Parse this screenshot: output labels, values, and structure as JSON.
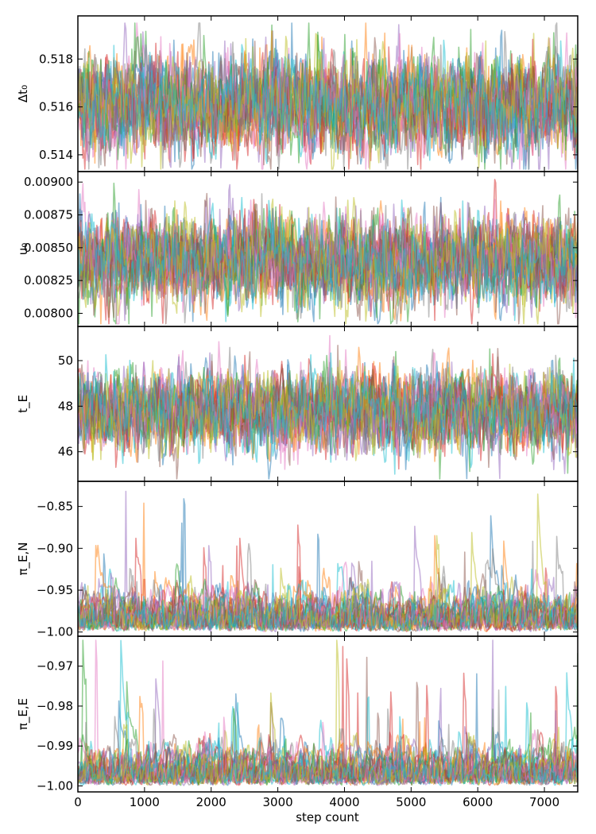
{
  "chart_data": {
    "type": "line",
    "description_style": "MCMC walker trace plot, stacked panels sharing the x axis",
    "xlabel": "step count",
    "xlim": [
      0,
      7500
    ],
    "xticks": [
      0,
      1000,
      2000,
      3000,
      4000,
      5000,
      6000,
      7000
    ],
    "xtick_labels": [
      "0",
      "1000",
      "2000",
      "3000",
      "4000",
      "5000",
      "6000",
      "7000"
    ],
    "series_colors": [
      "#1f77b4",
      "#ff7f0e",
      "#2ca02c",
      "#d62728",
      "#9467bd",
      "#8c564b",
      "#e377c2",
      "#7f7f7f",
      "#bcbd22",
      "#17becf"
    ],
    "series_opacity": 0.5,
    "n_walkers": 20,
    "n_steps": 7500,
    "panels": [
      {
        "ylabel": "Δt₀",
        "ylim": [
          0.5133,
          0.5198
        ],
        "yticks": [
          0.514,
          0.516,
          0.518
        ],
        "ytick_labels": [
          "0.514",
          "0.516",
          "0.518"
        ],
        "center": 0.5161,
        "spread": 0.0011,
        "min_observed": 0.5134,
        "max_observed": 0.5195
      },
      {
        "ylabel": "u₀",
        "ylim": [
          0.0079,
          0.00908
        ],
        "yticks": [
          0.008,
          0.00825,
          0.0085,
          0.00875,
          0.009
        ],
        "ytick_labels": [
          "0.00800",
          "0.00825",
          "0.00850",
          "0.00875",
          "0.00900"
        ],
        "center": 0.0084,
        "spread": 0.00018,
        "min_observed": 0.00792,
        "max_observed": 0.00902
      },
      {
        "ylabel": "t_E",
        "ylim": [
          44.7,
          51.5
        ],
        "yticks": [
          46,
          48,
          50
        ],
        "ytick_labels": [
          "46",
          "48",
          "50"
        ],
        "center": 47.8,
        "spread": 0.95,
        "min_observed": 44.8,
        "max_observed": 51.1
      },
      {
        "ylabel": "π_E,N",
        "ylim": [
          -1.005,
          -0.82
        ],
        "yticks": [
          -1.0,
          -0.95,
          -0.9,
          -0.85
        ],
        "ytick_labels": [
          "−1.00",
          "−0.95",
          "−0.90",
          "−0.85"
        ],
        "boundary": -1.0,
        "typical_excursion": 0.03,
        "max_observed": -0.832
      },
      {
        "ylabel": "π_E,E",
        "ylim": [
          -1.0015,
          -0.9625
        ],
        "yticks": [
          -1.0,
          -0.99,
          -0.98,
          -0.97
        ],
        "ytick_labels": [
          "−1.00",
          "−0.99",
          "−0.98",
          "−0.97"
        ],
        "boundary": -1.0,
        "typical_excursion": 0.006,
        "max_observed": -0.9635
      }
    ]
  }
}
